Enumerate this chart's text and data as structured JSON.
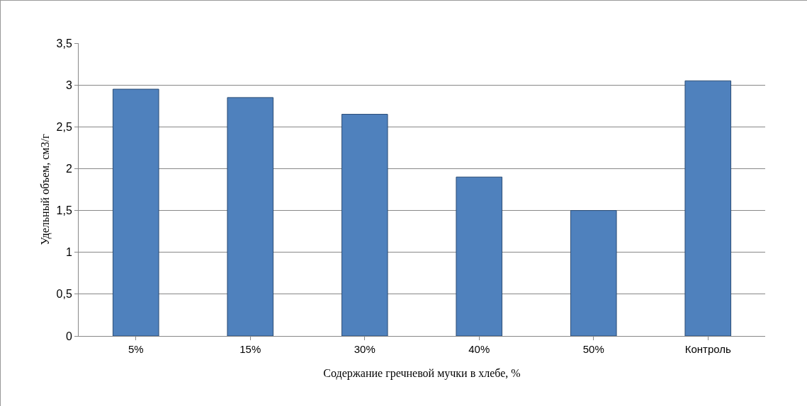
{
  "chart_data": {
    "type": "bar",
    "xlabel": "Содержание гречневой мучки в хлебе, %",
    "ylabel": "Удельный объем, см3/г",
    "categories": [
      "5%",
      "15%",
      "30%",
      "40%",
      "50%",
      "Контроль"
    ],
    "values": [
      2.95,
      2.85,
      2.65,
      1.9,
      1.5,
      3.05
    ],
    "color": "#4f81bd",
    "ylim": [
      0,
      3.5
    ],
    "yticks": [
      0,
      {
        "value": 0.5,
        "label": "0,5"
      },
      1,
      {
        "value": 1.5,
        "label": "1,5"
      },
      2,
      {
        "value": 2.5,
        "label": "2,5"
      },
      3,
      {
        "value": 3.5,
        "label": "3,5"
      }
    ],
    "grid": "y"
  }
}
